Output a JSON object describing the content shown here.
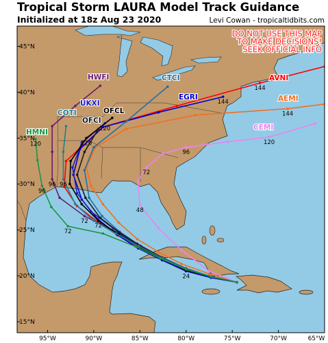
{
  "header": {
    "title": "Tropical Storm LAURA Model Track Guidance",
    "initialized": "Initialized at 18z Aug 23 2020",
    "credit": "Levi Cowan - tropicaltidbits.com"
  },
  "warning": [
    "DO NOT USE THIS MAP",
    "TO MAKE DECISIONS!",
    "SEEK OFFICIAL INFO"
  ],
  "map": {
    "lon_range": [
      -98.3,
      -65
    ],
    "lat_range": [
      13.8,
      47.2
    ],
    "lon_ticks": [
      {
        "value": -95,
        "label": "95°W"
      },
      {
        "value": -90,
        "label": "90°W"
      },
      {
        "value": -85,
        "label": "85°W"
      },
      {
        "value": -80,
        "label": "80°W"
      },
      {
        "value": -75,
        "label": "75°W"
      },
      {
        "value": -70,
        "label": "70°W"
      },
      {
        "value": -65,
        "label": "65°W"
      }
    ],
    "lat_ticks": [
      {
        "value": 45,
        "label": "45°N"
      },
      {
        "value": 40,
        "label": "40°N"
      },
      {
        "value": 35,
        "label": "35°N"
      },
      {
        "value": 30,
        "label": "30°N"
      },
      {
        "value": 25,
        "label": "25°N"
      },
      {
        "value": 20,
        "label": "20°N"
      },
      {
        "value": 15,
        "label": "15°N"
      }
    ]
  },
  "models": [
    {
      "name": "AVNI",
      "color": "#ff0000",
      "lons": [
        -74.5,
        -77.4,
        -80.1,
        -82.6,
        -85.1,
        -87.4,
        -89.6,
        -91.8,
        -93.2,
        -93,
        -89,
        -81,
        -72,
        -65
      ],
      "lats": [
        19.3,
        19.9,
        20.6,
        21.8,
        23,
        24.4,
        25.9,
        27.6,
        29.7,
        32.5,
        36.2,
        38.5,
        41,
        42.8
      ],
      "hour_marks": [
        144
      ]
    },
    {
      "name": "AEMI",
      "color": "#f07020",
      "lons": [
        -74.5,
        -77.5,
        -80.5,
        -83,
        -85.3,
        -87.3,
        -89,
        -90.3,
        -90.8,
        -89.8,
        -86.5,
        -79,
        -69,
        -65
      ],
      "lats": [
        19.3,
        20.2,
        21.3,
        22.6,
        24,
        25.8,
        27.8,
        29.8,
        31.8,
        34,
        36,
        37.5,
        38.2,
        38.7
      ],
      "hour_marks": [
        144
      ]
    },
    {
      "name": "CEMI",
      "color": "#ee82ee",
      "lons": [
        -74.5,
        -77.5,
        -80.5,
        -83,
        -85,
        -85.2,
        -84.3,
        -82.5,
        -80,
        -75.5,
        -71,
        -66
      ],
      "lats": [
        19.3,
        20.5,
        22.8,
        25.2,
        27.7,
        30.3,
        31.8,
        33.3,
        34,
        34.6,
        35.1,
        36.6
      ],
      "hour_marks": [
        48,
        72,
        96,
        120
      ]
    },
    {
      "name": "EGRI",
      "color": "#0000cd",
      "lons": [
        -74.5,
        -77.3,
        -80,
        -82.6,
        -85.2,
        -87.5,
        -89.6,
        -91.3,
        -92.2,
        -91.5,
        -89,
        -83,
        -76
      ],
      "lats": [
        19.3,
        19.8,
        20.5,
        21.7,
        23,
        24.5,
        26.2,
        28.3,
        31,
        33.8,
        36.2,
        37.8,
        39.5
      ],
      "hour_marks": [
        24,
        144
      ]
    },
    {
      "name": "CTCI",
      "color": "#1f6fa8",
      "lons": [
        -74.5,
        -77.2,
        -79.9,
        -82.4,
        -85,
        -87.2,
        -89.1,
        -90.5,
        -91,
        -90,
        -86.5,
        -82
      ],
      "lats": [
        19.3,
        19.9,
        20.7,
        21.9,
        23.3,
        24.8,
        26.5,
        28.5,
        31.5,
        34,
        36.8,
        40.6
      ],
      "hour_marks": []
    },
    {
      "name": "HWFI",
      "color": "#6a1b6a",
      "lons": [
        -74.5,
        -77.3,
        -80,
        -82.6,
        -85.3,
        -88,
        -91,
        -93.7,
        -94.5,
        -94.5,
        -94.5,
        -92,
        -89.3
      ],
      "lats": [
        19.3,
        19.9,
        20.8,
        22,
        23.5,
        25,
        26.5,
        28.5,
        30.5,
        33.5,
        36.3,
        38.5,
        40.7
      ],
      "hour_marks": [
        72,
        96
      ]
    },
    {
      "name": "UKXI",
      "color": "#2020c0",
      "lons": [
        -74.5,
        -77.3,
        -80,
        -82.5,
        -85,
        -87.4,
        -90.3,
        -91.8,
        -92.3,
        -91.3,
        -88.8
      ],
      "lats": [
        19.3,
        19.9,
        20.6,
        21.8,
        23.1,
        24.8,
        27,
        29,
        31.8,
        34.5,
        36.6
      ],
      "hour_marks": [
        120
      ]
    },
    {
      "name": "OFCL",
      "color": "#000000",
      "lons": [
        -74.5,
        -77.3,
        -80,
        -82.5,
        -85,
        -87.3,
        -89.5,
        -91.3,
        -92.6,
        -92.5,
        -90.8,
        -88
      ],
      "lats": [
        19.3,
        19.9,
        20.6,
        21.8,
        23.1,
        24.5,
        26,
        27.8,
        30,
        32.5,
        35,
        37.2
      ],
      "hour_marks": [
        72,
        120
      ]
    },
    {
      "name": "OFCI",
      "color": "#1a1a1a",
      "lons": [
        -74.5,
        -77.2,
        -79.9,
        -82.4,
        -84.9,
        -87.2,
        -89.3,
        -90.9,
        -91.8,
        -91,
        -89.5
      ],
      "lats": [
        19.3,
        19.9,
        20.7,
        21.9,
        23.2,
        24.7,
        26.3,
        28.5,
        31,
        33.5,
        36
      ],
      "hour_marks": []
    },
    {
      "name": "COTI",
      "color": "#1f7f8f",
      "lons": [
        -74.5,
        -77.2,
        -79.9,
        -82.5,
        -85.1,
        -87.6,
        -90,
        -92,
        -93.3,
        -93.3,
        -93
      ],
      "lats": [
        19.3,
        19.9,
        20.7,
        21.9,
        23.2,
        24.6,
        26,
        27.8,
        30.5,
        33.5,
        36.3
      ],
      "hour_marks": [
        96
      ]
    },
    {
      "name": "HMNI",
      "color": "#1a9641",
      "lons": [
        -74.5,
        -77.3,
        -80,
        -82.8,
        -85.5,
        -89,
        -92.8,
        -94.6,
        -95.6,
        -96.1,
        -96.3
      ],
      "lats": [
        19.3,
        19.9,
        20.7,
        21.9,
        23.2,
        24.6,
        25.4,
        27.5,
        29.8,
        32.6,
        34.9
      ],
      "hour_marks": [
        72,
        96,
        120
      ]
    }
  ]
}
